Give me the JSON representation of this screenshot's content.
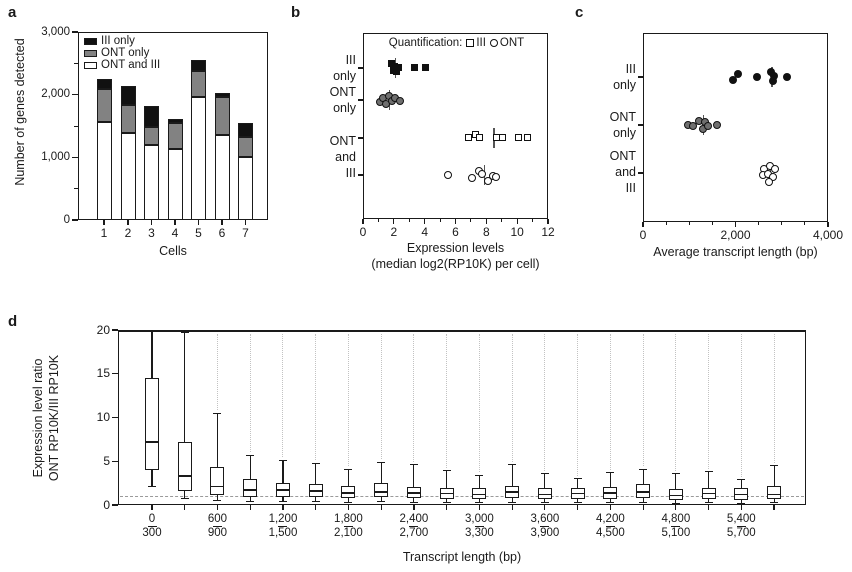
{
  "panels": {
    "a": {
      "letter": "a"
    },
    "b": {
      "letter": "b"
    },
    "c": {
      "letter": "c"
    },
    "d": {
      "letter": "d"
    }
  },
  "colors": {
    "text": "#1a1a1a",
    "axis": "#1a1a1a",
    "bar_white": "#ffffff",
    "bar_gray": "#828282",
    "bar_black": "#111111",
    "marker_gray": "#6f6f6f",
    "mean_line": "#555555",
    "reference_dashed": "#9a9a9a",
    "outlier_dots": "#c2c2c2"
  },
  "chart_data": [
    {
      "id": "a",
      "type": "bar",
      "stacked": true,
      "ylabel": "Number of genes detected",
      "xlabel": "Cells",
      "categories": [
        "1",
        "2",
        "3",
        "4",
        "5",
        "6",
        "7"
      ],
      "series": [
        {
          "name": "ONT and III",
          "style": "white",
          "values": [
            1560,
            1390,
            1200,
            1130,
            1970,
            1360,
            1010
          ]
        },
        {
          "name": "ONT only",
          "style": "gray",
          "values": [
            530,
            440,
            290,
            410,
            410,
            610,
            320
          ]
        },
        {
          "name": "III only",
          "style": "black",
          "values": [
            160,
            310,
            330,
            70,
            170,
            50,
            220
          ]
        }
      ],
      "legend": [
        {
          "label": "III only",
          "style": "black"
        },
        {
          "label": "ONT only",
          "style": "gray"
        },
        {
          "label": "ONT and III",
          "style": "white"
        }
      ],
      "ylim": [
        0,
        3000
      ],
      "yticks": [
        {
          "v": 0,
          "label": "0"
        },
        {
          "v": 1000,
          "label": "1,000"
        },
        {
          "v": 2000,
          "label": "2,000"
        },
        {
          "v": 3000,
          "label": "3,000"
        }
      ],
      "yminor": [
        500,
        1500,
        2500
      ]
    },
    {
      "id": "b",
      "type": "dotrow",
      "xlabel_lines": [
        "Expression levels",
        "(median log2(RP10K) per cell)"
      ],
      "legend": {
        "prefix": "Quantification:",
        "items": [
          {
            "marker": "square-open",
            "label": "III"
          },
          {
            "marker": "circle-open",
            "label": "ONT"
          }
        ]
      },
      "xlim": [
        0,
        12
      ],
      "xticks": [
        {
          "v": 0,
          "label": "0"
        },
        {
          "v": 2,
          "label": "2"
        },
        {
          "v": 4,
          "label": "4"
        },
        {
          "v": 6,
          "label": "6"
        },
        {
          "v": 8,
          "label": "8"
        },
        {
          "v": 10,
          "label": "10"
        },
        {
          "v": 12,
          "label": "12"
        }
      ],
      "xminor": [
        1,
        3,
        5,
        7,
        9,
        11
      ],
      "row_labels": [
        {
          "lines": [
            "III",
            "only"
          ]
        },
        {
          "lines": [
            "ONT",
            "only"
          ]
        },
        {
          "lines": [
            "ONT",
            "and",
            "III"
          ]
        }
      ],
      "rows": [
        {
          "group": "III only",
          "marker": "square-filled",
          "x": [
            1.9,
            2.0,
            2.1,
            2.2,
            2.35,
            3.4,
            4.1
          ],
          "jitter": [
            -4,
            3,
            -1,
            4,
            0,
            0,
            0
          ],
          "mean": 2.1
        },
        {
          "group": "ONT only",
          "marker": "circle-gray",
          "x": [
            1.1,
            1.3,
            1.5,
            1.7,
            1.9,
            2.1,
            2.4
          ],
          "jitter": [
            2,
            -2,
            4,
            -4,
            1,
            -2,
            1
          ],
          "mean": 1.7
        },
        {
          "group": "ONT and III (III quantification)",
          "marker": "square-open",
          "x": [
            6.9,
            7.3,
            7.6,
            8.7,
            9.1,
            10.1,
            10.7
          ],
          "jitter": [
            0,
            -3,
            0,
            0,
            0,
            0,
            0
          ],
          "mean": 8.5
        },
        {
          "group": "ONT and III (ONT quantification)",
          "marker": "circle-open",
          "x": [
            5.5,
            7.1,
            7.5,
            7.7,
            8.1,
            8.4,
            8.6
          ],
          "jitter": [
            0,
            3,
            -4,
            -1,
            6,
            1,
            2
          ],
          "mean": 7.9
        }
      ]
    },
    {
      "id": "c",
      "type": "dotrow",
      "xlabel_lines": [
        "Average transcript length (bp)"
      ],
      "xlim": [
        0,
        4000
      ],
      "xticks": [
        {
          "v": 0,
          "label": "0"
        },
        {
          "v": 2000,
          "label": "2,000"
        },
        {
          "v": 4000,
          "label": "4,000"
        }
      ],
      "xminor": [
        500,
        1000,
        1500,
        2500,
        3000,
        3500
      ],
      "row_labels": [
        {
          "lines": [
            "III",
            "only"
          ]
        },
        {
          "lines": [
            "ONT",
            "only"
          ]
        },
        {
          "lines": [
            "ONT",
            "and",
            "III"
          ]
        }
      ],
      "rows": [
        {
          "group": "III only",
          "marker": "circle-filled",
          "x": [
            1950,
            2050,
            2460,
            2760,
            2800,
            2840,
            3120
          ],
          "jitter": [
            3,
            -3,
            0,
            -5,
            4,
            -1,
            0
          ],
          "mean": 2790
        },
        {
          "group": "ONT only",
          "marker": "circle-gray",
          "x": [
            980,
            1080,
            1210,
            1290,
            1340,
            1410,
            1590
          ],
          "jitter": [
            0,
            1,
            -4,
            4,
            -3,
            1,
            0
          ],
          "mean": 1300
        },
        {
          "group": "ONT and III",
          "marker": "circle-open",
          "x": [
            2614,
            2743,
            2851,
            2600,
            2707,
            2802,
            2728
          ],
          "jitter": [
            -4,
            -7,
            -4,
            2,
            1,
            4,
            9
          ],
          "mean": 2750
        }
      ]
    },
    {
      "id": "d",
      "type": "box",
      "ylabel_lines": [
        "Expression level ratio",
        "ONT RP10K/III RP10K"
      ],
      "xlabel": "Transcript length (bp)",
      "ylim": [
        0,
        20
      ],
      "yticks": [
        {
          "v": 0,
          "label": "0"
        },
        {
          "v": 5,
          "label": "5"
        },
        {
          "v": 10,
          "label": "10"
        },
        {
          "v": 15,
          "label": "15"
        },
        {
          "v": 20,
          "label": "20"
        }
      ],
      "reference_line": 1,
      "outlier_trail_top": 19.5,
      "boxes": [
        {
          "lo": 2.1,
          "q1": 4.0,
          "med": 7.2,
          "q3": 14.5,
          "hi": 20.0,
          "clip_top": true,
          "label_top": "0",
          "label_bot": "300"
        },
        {
          "lo": 0.8,
          "q1": 1.6,
          "med": 3.3,
          "q3": 7.2,
          "hi": 19.7
        },
        {
          "lo": 0.5,
          "q1": 1.1,
          "med": 2.1,
          "q3": 4.3,
          "hi": 10.5,
          "label_top": "600",
          "label_bot": "900"
        },
        {
          "lo": 0.4,
          "q1": 0.9,
          "med": 1.7,
          "q3": 3.0,
          "hi": 5.7
        },
        {
          "lo": 0.4,
          "q1": 0.9,
          "med": 1.7,
          "q3": 2.5,
          "hi": 5.1,
          "label_top": "1,200",
          "label_bot": "1,500"
        },
        {
          "lo": 0.4,
          "q1": 0.9,
          "med": 1.6,
          "q3": 2.4,
          "hi": 4.8
        },
        {
          "lo": 0.3,
          "q1": 0.8,
          "med": 1.4,
          "q3": 2.2,
          "hi": 4.1,
          "label_top": "1,800",
          "label_bot": "2,100"
        },
        {
          "lo": 0.4,
          "q1": 0.9,
          "med": 1.5,
          "q3": 2.5,
          "hi": 4.9
        },
        {
          "lo": 0.3,
          "q1": 0.8,
          "med": 1.4,
          "q3": 2.1,
          "hi": 4.6,
          "label_top": "2,400",
          "label_bot": "2,700"
        },
        {
          "lo": 0.3,
          "q1": 0.7,
          "med": 1.3,
          "q3": 2.0,
          "hi": 3.9
        },
        {
          "lo": 0.3,
          "q1": 0.7,
          "med": 1.2,
          "q3": 1.9,
          "hi": 3.4,
          "label_top": "3,000",
          "label_bot": "3,300"
        },
        {
          "lo": 0.3,
          "q1": 0.8,
          "med": 1.5,
          "q3": 2.2,
          "hi": 4.6
        },
        {
          "lo": 0.3,
          "q1": 0.7,
          "med": 1.2,
          "q3": 2.0,
          "hi": 3.6,
          "label_top": "3,600",
          "label_bot": "3,900"
        },
        {
          "lo": 0.3,
          "q1": 0.7,
          "med": 1.3,
          "q3": 1.9,
          "hi": 3.0
        },
        {
          "lo": 0.3,
          "q1": 0.7,
          "med": 1.4,
          "q3": 2.1,
          "hi": 3.7,
          "label_top": "4,200",
          "label_bot": "4,500"
        },
        {
          "lo": 0.3,
          "q1": 0.8,
          "med": 1.5,
          "q3": 2.4,
          "hi": 4.1
        },
        {
          "lo": 0.2,
          "q1": 0.6,
          "med": 1.1,
          "q3": 1.8,
          "hi": 3.6,
          "label_top": "4,800",
          "label_bot": "5,100"
        },
        {
          "lo": 0.3,
          "q1": 0.7,
          "med": 1.3,
          "q3": 2.0,
          "hi": 3.8
        },
        {
          "lo": 0.2,
          "q1": 0.6,
          "med": 1.2,
          "q3": 1.9,
          "hi": 2.9,
          "label_top": "5,400",
          "label_bot": "5,700"
        },
        {
          "lo": 0.3,
          "q1": 0.7,
          "med": 1.2,
          "q3": 2.2,
          "hi": 4.5
        }
      ]
    }
  ]
}
